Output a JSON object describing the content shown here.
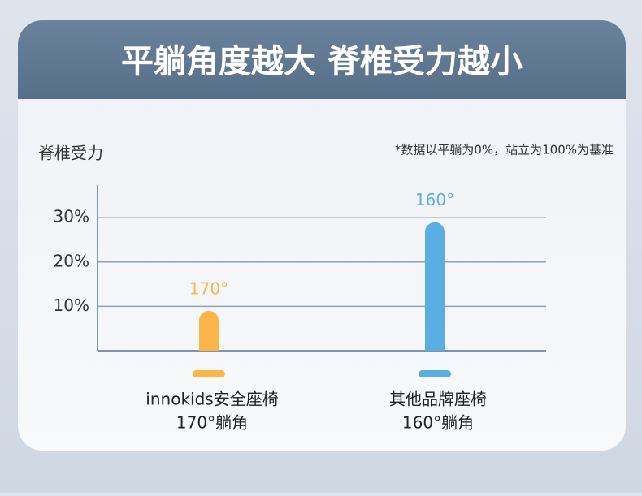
{
  "chart_data": {
    "type": "bar",
    "title": "平躺角度越大 脊椎受力越小",
    "ylabel": "脊椎受力",
    "note": "*数据以平躺为0%，站立为100%为基准",
    "categories": [
      "innokids安全座椅",
      "其他品牌座椅"
    ],
    "sublabels": [
      "170°躺角",
      "160°躺角"
    ],
    "bar_labels": [
      "170°",
      "160°"
    ],
    "values": [
      9,
      29
    ],
    "colors": [
      "#fbb548",
      "#5aaee2"
    ],
    "ylim": [
      0,
      37
    ],
    "yticks": [
      {
        "value": 10,
        "label": "10%"
      },
      {
        "value": 20,
        "label": "20%"
      },
      {
        "value": 30,
        "label": "30%"
      }
    ],
    "grid": true
  }
}
